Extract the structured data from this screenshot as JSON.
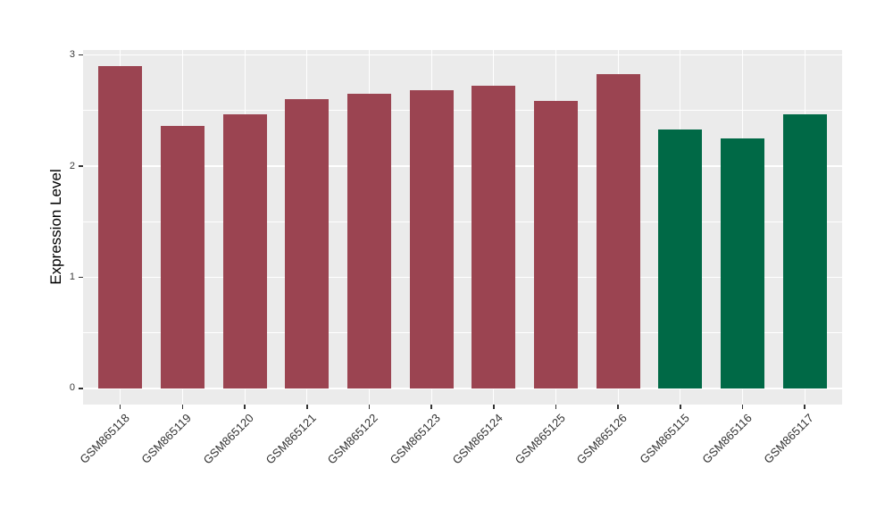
{
  "chart_data": {
    "type": "bar",
    "title": "",
    "xlabel": "",
    "ylabel": "Expression Level",
    "categories": [
      "GSM865118",
      "GSM865119",
      "GSM865120",
      "GSM865121",
      "GSM865122",
      "GSM865123",
      "GSM865124",
      "GSM865125",
      "GSM865126",
      "GSM865115",
      "GSM865116",
      "GSM865117"
    ],
    "values": [
      2.9,
      2.36,
      2.47,
      2.6,
      2.65,
      2.68,
      2.72,
      2.59,
      2.83,
      2.33,
      2.25,
      2.47
    ],
    "bar_colors": [
      "#9B4451",
      "#9B4451",
      "#9B4451",
      "#9B4451",
      "#9B4451",
      "#9B4451",
      "#9B4451",
      "#9B4451",
      "#9B4451",
      "#006946",
      "#006946",
      "#006946"
    ],
    "group_colors": {
      "first_group": "#9B4451",
      "second_group": "#006946"
    },
    "ylim": [
      0,
      3
    ],
    "yticks": [
      0,
      1,
      2,
      3
    ],
    "yticks_minor": [
      0.5,
      1.5,
      2.5
    ],
    "grid": "on",
    "legend": "none",
    "panel_background": "#EBEBEB",
    "grid_color": "#FFFFFF",
    "tick_color": "#333333"
  }
}
